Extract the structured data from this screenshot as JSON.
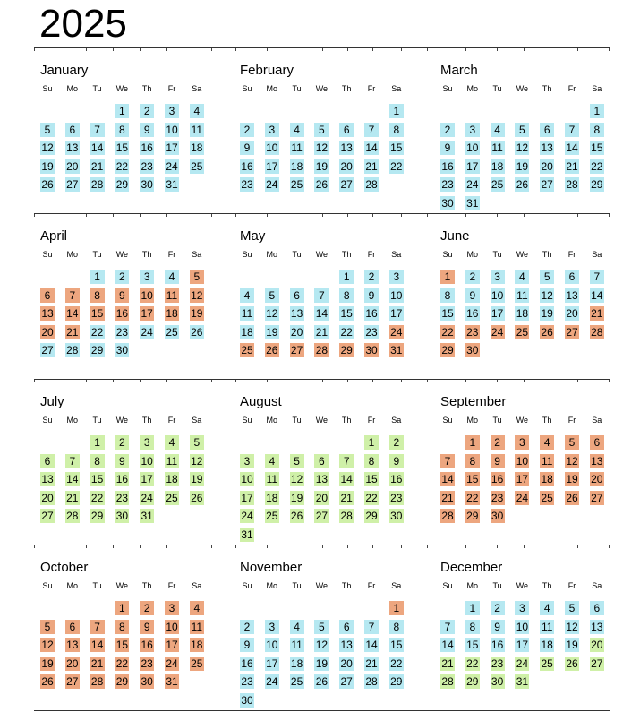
{
  "title": "2025",
  "weekdays": [
    "Su",
    "Mo",
    "Tu",
    "We",
    "Th",
    "Fr",
    "Sa"
  ],
  "colors": {
    "blue": "#b5e8f1",
    "orange": "#eda67f",
    "green": "#cff0a8"
  },
  "months": [
    {
      "name": "January",
      "start": 3,
      "days": 31,
      "colors": [
        {
          "from": 1,
          "to": 31,
          "c": "blue"
        }
      ]
    },
    {
      "name": "February",
      "start": 6,
      "days": 28,
      "colors": [
        {
          "from": 1,
          "to": 28,
          "c": "blue"
        }
      ]
    },
    {
      "name": "March",
      "start": 6,
      "days": 31,
      "colors": [
        {
          "from": 1,
          "to": 31,
          "c": "blue"
        }
      ]
    },
    {
      "name": "April",
      "start": 2,
      "days": 30,
      "colors": [
        {
          "from": 1,
          "to": 4,
          "c": "blue"
        },
        {
          "from": 5,
          "to": 21,
          "c": "orange"
        },
        {
          "from": 22,
          "to": 30,
          "c": "blue"
        }
      ]
    },
    {
      "name": "May",
      "start": 4,
      "days": 31,
      "colors": [
        {
          "from": 1,
          "to": 23,
          "c": "blue"
        },
        {
          "from": 24,
          "to": 31,
          "c": "orange"
        }
      ]
    },
    {
      "name": "June",
      "start": 0,
      "days": 30,
      "colors": [
        {
          "from": 1,
          "to": 1,
          "c": "orange"
        },
        {
          "from": 2,
          "to": 20,
          "c": "blue"
        },
        {
          "from": 21,
          "to": 30,
          "c": "orange"
        }
      ]
    },
    {
      "name": "July",
      "start": 2,
      "days": 31,
      "colors": [
        {
          "from": 1,
          "to": 31,
          "c": "green"
        }
      ]
    },
    {
      "name": "August",
      "start": 5,
      "days": 31,
      "colors": [
        {
          "from": 1,
          "to": 31,
          "c": "green"
        }
      ]
    },
    {
      "name": "September",
      "start": 1,
      "days": 30,
      "colors": [
        {
          "from": 1,
          "to": 30,
          "c": "orange"
        }
      ]
    },
    {
      "name": "October",
      "start": 3,
      "days": 31,
      "colors": [
        {
          "from": 1,
          "to": 31,
          "c": "orange"
        }
      ]
    },
    {
      "name": "November",
      "start": 6,
      "days": 30,
      "colors": [
        {
          "from": 1,
          "to": 1,
          "c": "orange"
        },
        {
          "from": 2,
          "to": 30,
          "c": "blue"
        }
      ]
    },
    {
      "name": "December",
      "start": 1,
      "days": 31,
      "colors": [
        {
          "from": 1,
          "to": 19,
          "c": "blue"
        },
        {
          "from": 20,
          "to": 31,
          "c": "green"
        }
      ]
    }
  ]
}
